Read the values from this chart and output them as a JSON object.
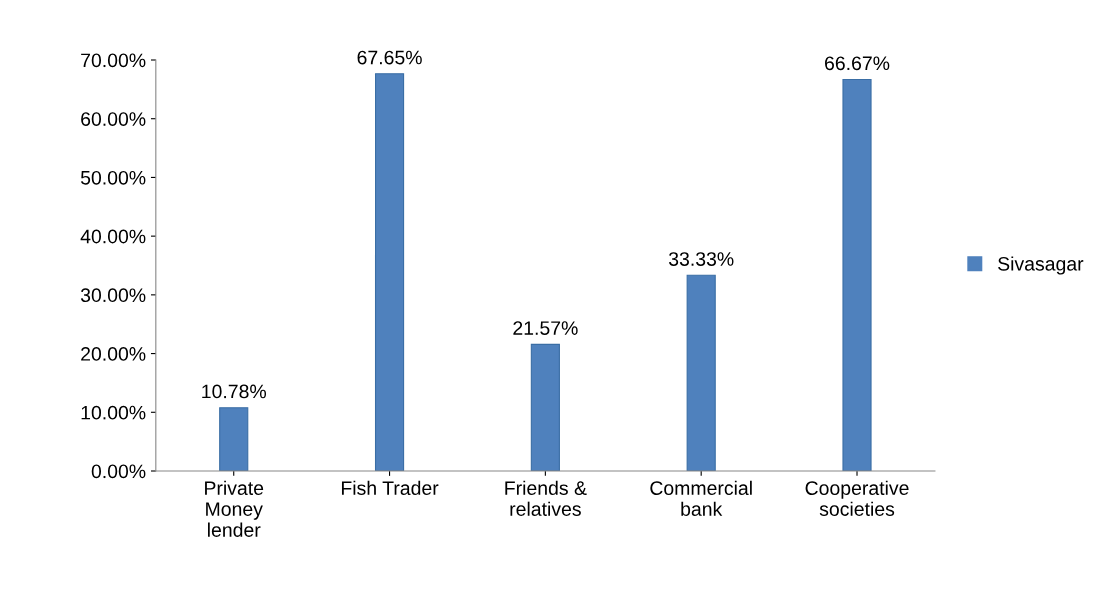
{
  "chart_data": {
    "type": "bar",
    "categories": [
      "Private\nMoney\nlender",
      "Fish Trader",
      "Friends &\nrelatives",
      "Commercial\nbank",
      "Cooperative\nsocieties"
    ],
    "series": [
      {
        "name": "Sivasagar",
        "color": "#4f81bd",
        "values": [
          10.78,
          67.65,
          21.57,
          33.33,
          66.67
        ]
      }
    ],
    "value_labels": [
      "10.78%",
      "67.65%",
      "21.57%",
      "33.33%",
      "66.67%"
    ],
    "ylim": [
      0,
      70
    ],
    "yticks": [
      {
        "value": 0,
        "label": "0.00%"
      },
      {
        "value": 10,
        "label": "10.00%"
      },
      {
        "value": 20,
        "label": "20.00%"
      },
      {
        "value": 30,
        "label": "30.00%"
      },
      {
        "value": 40,
        "label": "40.00%"
      },
      {
        "value": 50,
        "label": "50.00%"
      },
      {
        "value": 60,
        "label": "60.00%"
      },
      {
        "value": 70,
        "label": "70.00%"
      }
    ],
    "grid": false,
    "legend": "right"
  }
}
